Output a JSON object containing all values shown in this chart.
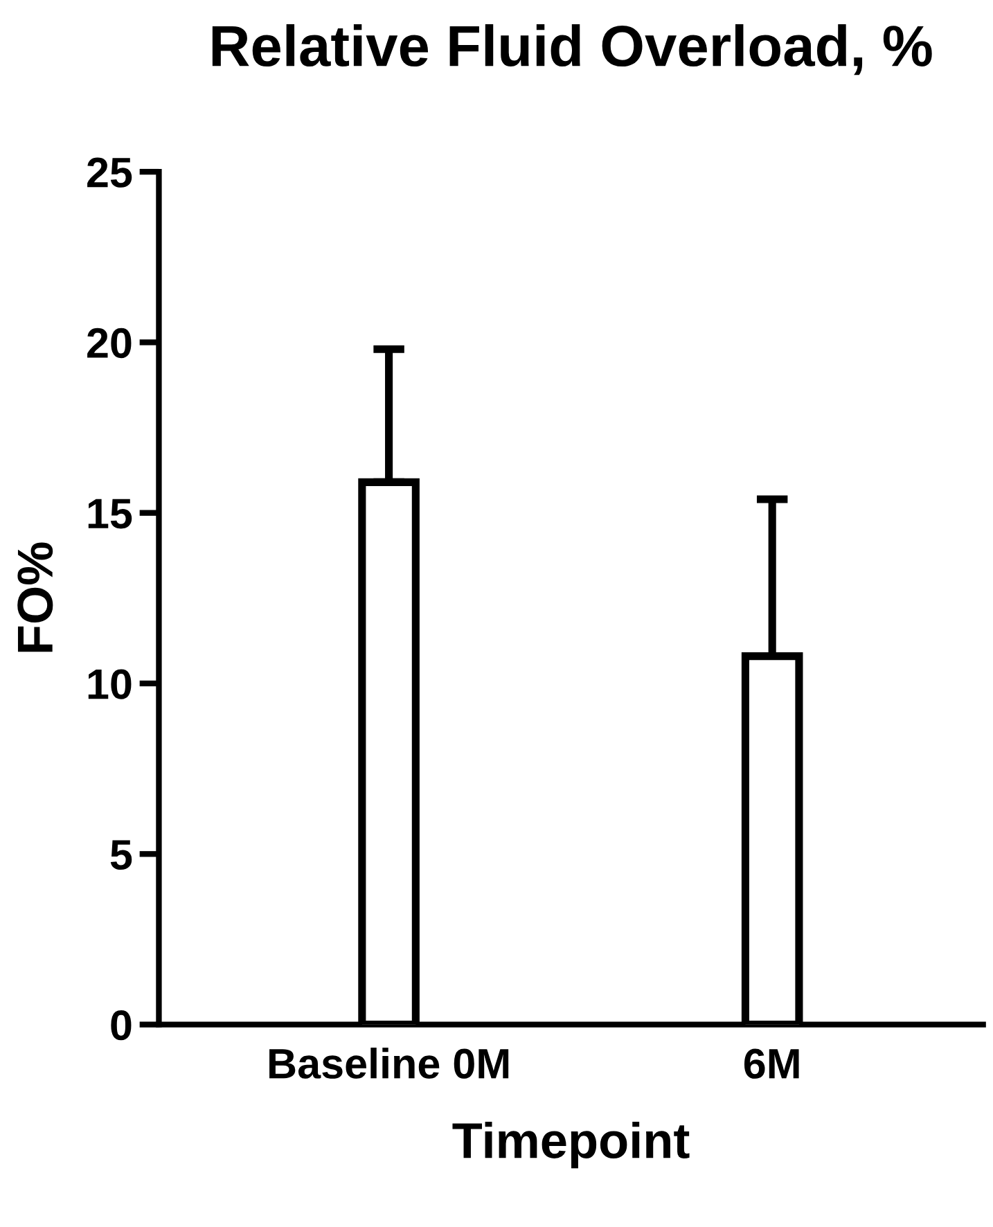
{
  "chart_data": {
    "type": "bar",
    "title": "Relative Fluid Overload, %",
    "xlabel": "Timepoint",
    "ylabel": "FO%",
    "categories": [
      "Baseline 0M",
      "6M"
    ],
    "values": [
      15.9,
      10.8
    ],
    "errors": [
      [
        15.9,
        19.8
      ],
      [
        10.8,
        15.4
      ]
    ],
    "color": "#ffffff",
    "ylim": [
      0,
      25
    ],
    "yticks": [
      0,
      5,
      10,
      15,
      20,
      25
    ],
    "grid": false,
    "legend": false
  }
}
